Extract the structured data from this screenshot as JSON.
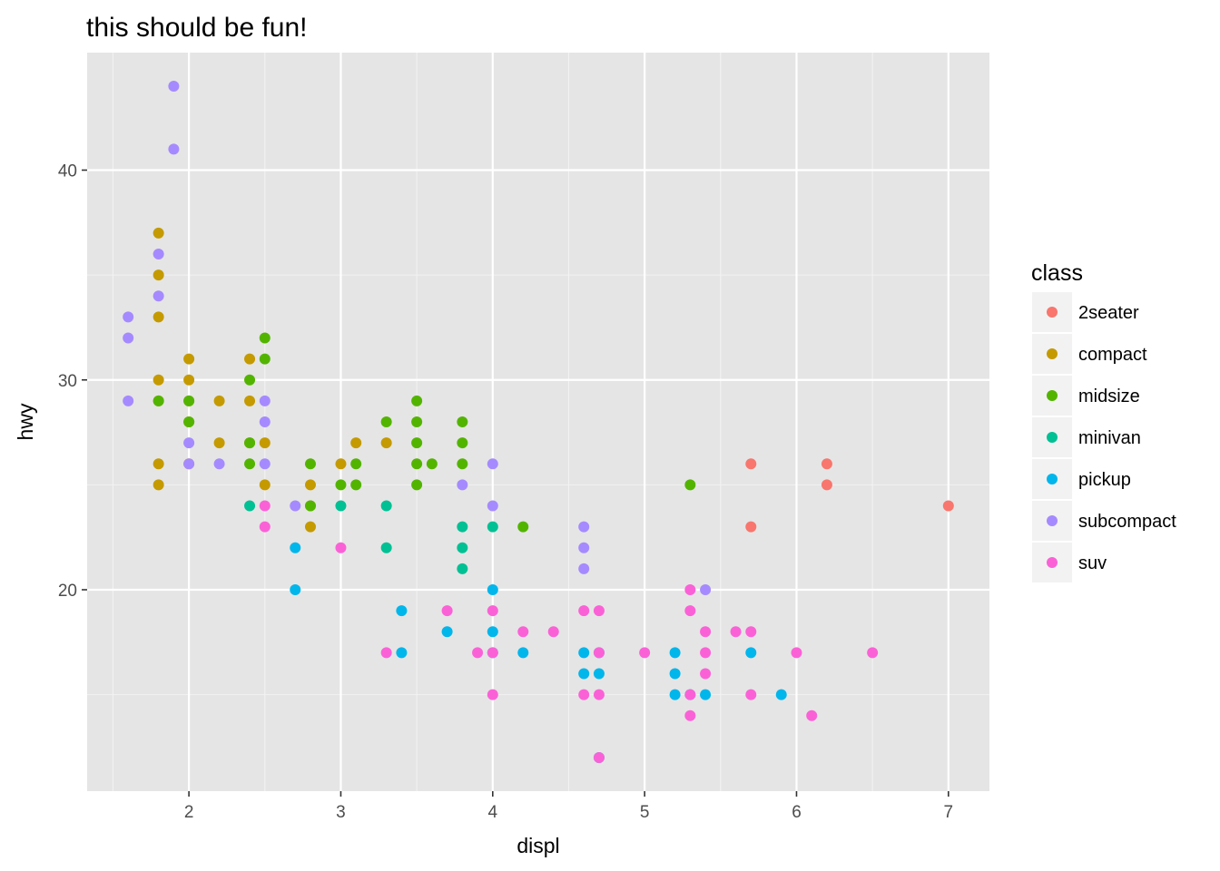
{
  "chart_data": {
    "type": "scatter",
    "title": "this should be fun!",
    "xlabel": "displ",
    "ylabel": "hwy",
    "xlim": [
      1.33,
      7.27
    ],
    "ylim": [
      10.4,
      45.6
    ],
    "x_ticks": [
      "2",
      "3",
      "4",
      "5",
      "6",
      "7"
    ],
    "y_ticks": [
      "20",
      "30",
      "40"
    ],
    "grid": true,
    "legend_position": "right",
    "legend_title": "class",
    "series": [
      {
        "name": "2seater",
        "color": "#F8766D",
        "points": [
          [
            5.7,
            26
          ],
          [
            5.7,
            23
          ],
          [
            6.2,
            26
          ],
          [
            6.2,
            25
          ],
          [
            7.0,
            24
          ]
        ]
      },
      {
        "name": "compact",
        "color": "#C49A00",
        "points": [
          [
            1.8,
            37
          ],
          [
            1.8,
            35
          ],
          [
            1.8,
            33
          ],
          [
            1.8,
            30
          ],
          [
            1.8,
            29
          ],
          [
            1.8,
            26
          ],
          [
            1.8,
            25
          ],
          [
            2.0,
            31
          ],
          [
            2.0,
            30
          ],
          [
            2.0,
            29
          ],
          [
            2.0,
            28
          ],
          [
            2.0,
            26
          ],
          [
            2.2,
            29
          ],
          [
            2.2,
            27
          ],
          [
            2.4,
            31
          ],
          [
            2.4,
            29
          ],
          [
            2.4,
            27
          ],
          [
            2.5,
            27
          ],
          [
            2.5,
            25
          ],
          [
            2.8,
            25
          ],
          [
            2.8,
            24
          ],
          [
            2.8,
            23
          ],
          [
            3.0,
            26
          ],
          [
            3.1,
            27
          ],
          [
            3.3,
            27
          ]
        ]
      },
      {
        "name": "midsize",
        "color": "#53B400",
        "points": [
          [
            1.8,
            29
          ],
          [
            2.0,
            29
          ],
          [
            2.0,
            28
          ],
          [
            2.4,
            30
          ],
          [
            2.4,
            27
          ],
          [
            2.4,
            26
          ],
          [
            2.5,
            32
          ],
          [
            2.5,
            31
          ],
          [
            2.8,
            26
          ],
          [
            2.8,
            24
          ],
          [
            3.0,
            25
          ],
          [
            3.1,
            26
          ],
          [
            3.1,
            25
          ],
          [
            3.3,
            28
          ],
          [
            3.5,
            29
          ],
          [
            3.5,
            28
          ],
          [
            3.5,
            27
          ],
          [
            3.5,
            26
          ],
          [
            3.5,
            25
          ],
          [
            3.6,
            26
          ],
          [
            3.8,
            28
          ],
          [
            3.8,
            27
          ],
          [
            3.8,
            26
          ],
          [
            4.2,
            23
          ],
          [
            5.3,
            25
          ]
        ]
      },
      {
        "name": "minivan",
        "color": "#00C094",
        "points": [
          [
            2.4,
            24
          ],
          [
            3.0,
            24
          ],
          [
            3.3,
            24
          ],
          [
            3.3,
            22
          ],
          [
            3.8,
            23
          ],
          [
            3.8,
            22
          ],
          [
            3.8,
            21
          ],
          [
            4.0,
            23
          ]
        ]
      },
      {
        "name": "pickup",
        "color": "#00B6EB",
        "points": [
          [
            2.7,
            22
          ],
          [
            2.7,
            20
          ],
          [
            3.4,
            19
          ],
          [
            3.4,
            17
          ],
          [
            3.7,
            18
          ],
          [
            4.0,
            20
          ],
          [
            4.0,
            18
          ],
          [
            4.0,
            17
          ],
          [
            4.2,
            17
          ],
          [
            4.6,
            17
          ],
          [
            4.6,
            16
          ],
          [
            4.7,
            17
          ],
          [
            4.7,
            16
          ],
          [
            4.7,
            12
          ],
          [
            5.2,
            17
          ],
          [
            5.2,
            16
          ],
          [
            5.2,
            15
          ],
          [
            5.3,
            15
          ],
          [
            5.4,
            15
          ],
          [
            5.7,
            17
          ],
          [
            5.9,
            15
          ]
        ]
      },
      {
        "name": "subcompact",
        "color": "#A58AFF",
        "points": [
          [
            1.6,
            33
          ],
          [
            1.6,
            32
          ],
          [
            1.6,
            29
          ],
          [
            1.8,
            36
          ],
          [
            1.8,
            34
          ],
          [
            1.9,
            44
          ],
          [
            1.9,
            41
          ],
          [
            2.0,
            27
          ],
          [
            2.0,
            26
          ],
          [
            2.2,
            26
          ],
          [
            2.5,
            29
          ],
          [
            2.5,
            28
          ],
          [
            2.5,
            26
          ],
          [
            2.7,
            24
          ],
          [
            3.8,
            25
          ],
          [
            4.0,
            26
          ],
          [
            4.0,
            24
          ],
          [
            4.6,
            23
          ],
          [
            4.6,
            22
          ],
          [
            4.6,
            21
          ],
          [
            5.4,
            20
          ]
        ]
      },
      {
        "name": "suv",
        "color": "#FB61D7",
        "points": [
          [
            2.5,
            24
          ],
          [
            2.5,
            23
          ],
          [
            3.0,
            22
          ],
          [
            3.3,
            17
          ],
          [
            3.7,
            19
          ],
          [
            3.9,
            17
          ],
          [
            4.0,
            19
          ],
          [
            4.0,
            17
          ],
          [
            4.0,
            15
          ],
          [
            4.2,
            18
          ],
          [
            4.4,
            18
          ],
          [
            4.6,
            19
          ],
          [
            4.6,
            15
          ],
          [
            4.7,
            19
          ],
          [
            4.7,
            17
          ],
          [
            4.7,
            15
          ],
          [
            4.7,
            12
          ],
          [
            5.0,
            17
          ],
          [
            5.3,
            20
          ],
          [
            5.3,
            19
          ],
          [
            5.3,
            15
          ],
          [
            5.3,
            14
          ],
          [
            5.4,
            18
          ],
          [
            5.4,
            17
          ],
          [
            5.4,
            16
          ],
          [
            5.6,
            18
          ],
          [
            5.7,
            18
          ],
          [
            5.7,
            15
          ],
          [
            6.0,
            17
          ],
          [
            6.1,
            14
          ],
          [
            6.5,
            17
          ]
        ]
      }
    ]
  }
}
